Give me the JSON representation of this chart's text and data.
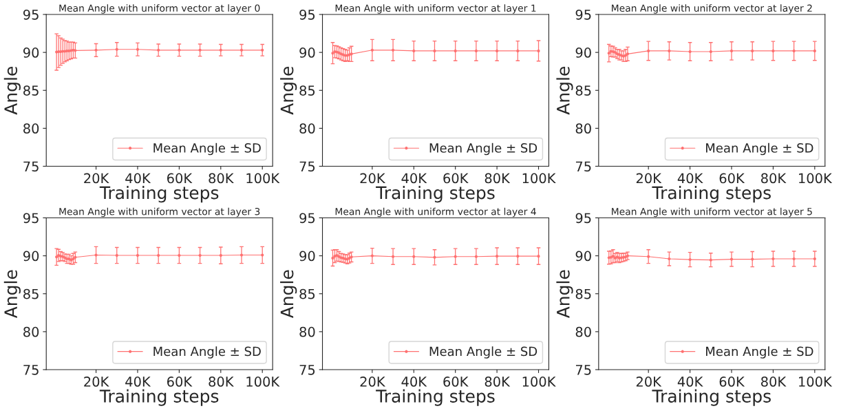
{
  "chart_data": [
    {
      "type": "line",
      "title": "Mean Angle with uniform vector at layer 0",
      "xlabel": "Training steps",
      "ylabel": "Angle",
      "x": [
        1000,
        2000,
        3000,
        4000,
        5000,
        6000,
        7000,
        8000,
        9000,
        10000,
        20000,
        30000,
        40000,
        50000,
        60000,
        70000,
        80000,
        90000,
        100000
      ],
      "xlim": [
        -3950,
        104950
      ],
      "xticks": [
        {
          "value": 20000,
          "label": "20K"
        },
        {
          "value": 40000,
          "label": "40K"
        },
        {
          "value": 60000,
          "label": "60K"
        },
        {
          "value": 80000,
          "label": "80K"
        },
        {
          "value": 100000,
          "label": "100K"
        }
      ],
      "ylim": [
        75,
        95
      ],
      "yticks": [
        75,
        80,
        85,
        90,
        95
      ],
      "legend": "bottom right",
      "marker": "circle",
      "line_style": "solid",
      "grid": false,
      "series": [
        {
          "name": "Mean Angle ± SD",
          "color": "#ff7070",
          "values": [
            90.05,
            90.1,
            90.1,
            90.15,
            90.15,
            90.2,
            90.2,
            90.25,
            90.3,
            90.25,
            90.3,
            90.4,
            90.4,
            90.3,
            90.3,
            90.3,
            90.3,
            90.3,
            90.3
          ],
          "errors": [
            2.4,
            2.1,
            1.8,
            1.6,
            1.4,
            1.3,
            1.15,
            1.1,
            1.05,
            1.0,
            0.85,
            0.9,
            0.85,
            0.8,
            0.8,
            0.8,
            0.75,
            0.75,
            0.75
          ]
        }
      ]
    },
    {
      "type": "line",
      "title": "Mean Angle with uniform vector at layer 1",
      "xlabel": "Training steps",
      "ylabel": "Angle",
      "x": [
        1000,
        2000,
        3000,
        4000,
        5000,
        6000,
        7000,
        8000,
        9000,
        10000,
        20000,
        30000,
        40000,
        50000,
        60000,
        70000,
        80000,
        90000,
        100000
      ],
      "xlim": [
        -3950,
        104950
      ],
      "xticks": [
        {
          "value": 20000,
          "label": "20K"
        },
        {
          "value": 40000,
          "label": "40K"
        },
        {
          "value": 60000,
          "label": "60K"
        },
        {
          "value": 80000,
          "label": "80K"
        },
        {
          "value": 100000,
          "label": "100K"
        }
      ],
      "ylim": [
        75,
        95
      ],
      "yticks": [
        75,
        80,
        85,
        90,
        95
      ],
      "legend": "bottom right",
      "marker": "circle",
      "line_style": "solid",
      "grid": false,
      "series": [
        {
          "name": "Mean Angle ± SD",
          "color": "#ff7070",
          "values": [
            89.9,
            90.1,
            90.05,
            89.95,
            89.8,
            89.7,
            89.6,
            89.6,
            89.7,
            89.8,
            90.3,
            90.3,
            90.2,
            90.2,
            90.2,
            90.2,
            90.2,
            90.2,
            90.2
          ],
          "errors": [
            1.4,
            0.8,
            0.8,
            0.8,
            0.8,
            0.8,
            0.8,
            0.7,
            0.9,
            1.0,
            1.4,
            1.4,
            1.3,
            1.3,
            1.3,
            1.3,
            1.3,
            1.3,
            1.35
          ]
        }
      ]
    },
    {
      "type": "line",
      "title": "Mean Angle with uniform vector at layer 2",
      "xlabel": "Training steps",
      "ylabel": "Angle",
      "x": [
        1000,
        2000,
        3000,
        4000,
        5000,
        6000,
        7000,
        8000,
        9000,
        10000,
        20000,
        30000,
        40000,
        50000,
        60000,
        70000,
        80000,
        90000,
        100000
      ],
      "xlim": [
        -3950,
        104950
      ],
      "xticks": [
        {
          "value": 20000,
          "label": "20K"
        },
        {
          "value": 40000,
          "label": "40K"
        },
        {
          "value": 60000,
          "label": "60K"
        },
        {
          "value": 80000,
          "label": "80K"
        },
        {
          "value": 100000,
          "label": "100K"
        }
      ],
      "ylim": [
        75,
        95
      ],
      "yticks": [
        75,
        80,
        85,
        90,
        95
      ],
      "legend": "bottom right",
      "marker": "circle",
      "line_style": "solid",
      "grid": false,
      "series": [
        {
          "name": "Mean Angle ± SD",
          "color": "#ff7070",
          "values": [
            89.9,
            90.15,
            90.1,
            90.0,
            89.8,
            89.7,
            89.6,
            89.5,
            89.6,
            89.8,
            90.2,
            90.2,
            90.1,
            90.1,
            90.2,
            90.2,
            90.2,
            90.2,
            90.2
          ],
          "errors": [
            1.15,
            0.7,
            0.7,
            0.6,
            0.6,
            0.7,
            0.6,
            0.7,
            0.8,
            0.9,
            1.25,
            1.2,
            1.2,
            1.2,
            1.2,
            1.2,
            1.25,
            1.25,
            1.25
          ]
        }
      ]
    },
    {
      "type": "line",
      "title": "Mean Angle with uniform vector at layer 3",
      "xlabel": "Training steps",
      "ylabel": "Angle",
      "x": [
        1000,
        2000,
        3000,
        4000,
        5000,
        6000,
        7000,
        8000,
        9000,
        10000,
        20000,
        30000,
        40000,
        50000,
        60000,
        70000,
        80000,
        90000,
        100000
      ],
      "xlim": [
        -3950,
        104950
      ],
      "xticks": [
        {
          "value": 20000,
          "label": "20K"
        },
        {
          "value": 40000,
          "label": "40K"
        },
        {
          "value": 60000,
          "label": "60K"
        },
        {
          "value": 80000,
          "label": "80K"
        },
        {
          "value": 100000,
          "label": "100K"
        }
      ],
      "ylim": [
        75,
        95
      ],
      "yticks": [
        75,
        80,
        85,
        90,
        95
      ],
      "legend": "bottom right",
      "marker": "circle",
      "line_style": "solid",
      "grid": false,
      "series": [
        {
          "name": "Mean Angle ± SD",
          "color": "#ff7070",
          "values": [
            89.85,
            90.05,
            89.95,
            89.9,
            89.75,
            89.6,
            89.6,
            89.45,
            89.6,
            89.8,
            90.1,
            90.05,
            90.05,
            90.05,
            90.05,
            90.05,
            90.05,
            90.1,
            90.1
          ],
          "errors": [
            1.1,
            0.8,
            0.6,
            0.55,
            0.5,
            0.6,
            0.6,
            0.55,
            0.7,
            0.7,
            1.1,
            1.05,
            1.05,
            1.05,
            1.05,
            1.05,
            1.1,
            1.1,
            1.1
          ]
        }
      ]
    },
    {
      "type": "line",
      "title": "Mean Angle with uniform vector at layer 4",
      "xlabel": "Training steps",
      "ylabel": "Angle",
      "x": [
        1000,
        2000,
        3000,
        4000,
        5000,
        6000,
        7000,
        8000,
        9000,
        10000,
        20000,
        30000,
        40000,
        50000,
        60000,
        70000,
        80000,
        90000,
        100000
      ],
      "xlim": [
        -3950,
        104950
      ],
      "xticks": [
        {
          "value": 20000,
          "label": "20K"
        },
        {
          "value": 40000,
          "label": "40K"
        },
        {
          "value": 60000,
          "label": "60K"
        },
        {
          "value": 80000,
          "label": "80K"
        },
        {
          "value": 100000,
          "label": "100K"
        }
      ],
      "ylim": [
        75,
        95
      ],
      "yticks": [
        75,
        80,
        85,
        90,
        95
      ],
      "legend": "bottom right",
      "marker": "circle",
      "line_style": "solid",
      "grid": false,
      "series": [
        {
          "name": "Mean Angle ± SD",
          "color": "#ff7070",
          "values": [
            89.7,
            89.95,
            90.05,
            89.9,
            89.75,
            89.7,
            89.6,
            89.55,
            89.7,
            89.85,
            90.0,
            89.9,
            89.9,
            89.8,
            89.9,
            89.9,
            89.95,
            89.95,
            89.95
          ],
          "errors": [
            1.05,
            0.85,
            0.75,
            0.65,
            0.55,
            0.55,
            0.55,
            0.6,
            0.65,
            0.65,
            1.0,
            1.05,
            1.05,
            1.0,
            1.05,
            1.05,
            1.1,
            1.1,
            1.1
          ]
        }
      ]
    },
    {
      "type": "line",
      "title": "Mean Angle with uniform vector at layer 5",
      "xlabel": "Training steps",
      "ylabel": "Angle",
      "x": [
        1000,
        2000,
        3000,
        4000,
        5000,
        6000,
        7000,
        8000,
        9000,
        10000,
        20000,
        30000,
        40000,
        50000,
        60000,
        70000,
        80000,
        90000,
        100000
      ],
      "xlim": [
        -3950,
        104950
      ],
      "xticks": [
        {
          "value": 20000,
          "label": "20K"
        },
        {
          "value": 40000,
          "label": "40K"
        },
        {
          "value": 60000,
          "label": "60K"
        },
        {
          "value": 80000,
          "label": "80K"
        },
        {
          "value": 100000,
          "label": "100K"
        }
      ],
      "ylim": [
        75,
        95
      ],
      "yticks": [
        75,
        80,
        85,
        90,
        95
      ],
      "legend": "bottom right",
      "marker": "circle",
      "line_style": "solid",
      "grid": false,
      "series": [
        {
          "name": "Mean Angle ± SD",
          "color": "#ff7070",
          "values": [
            89.75,
            89.8,
            89.95,
            89.7,
            89.85,
            89.7,
            89.75,
            89.8,
            89.85,
            90.0,
            89.9,
            89.6,
            89.5,
            89.45,
            89.55,
            89.55,
            89.6,
            89.6,
            89.6
          ],
          "errors": [
            0.85,
            0.85,
            0.85,
            0.6,
            0.6,
            0.6,
            0.55,
            0.55,
            0.5,
            0.5,
            0.9,
            0.9,
            0.95,
            0.9,
            0.95,
            1.0,
            1.0,
            1.0,
            1.0
          ]
        }
      ]
    }
  ]
}
